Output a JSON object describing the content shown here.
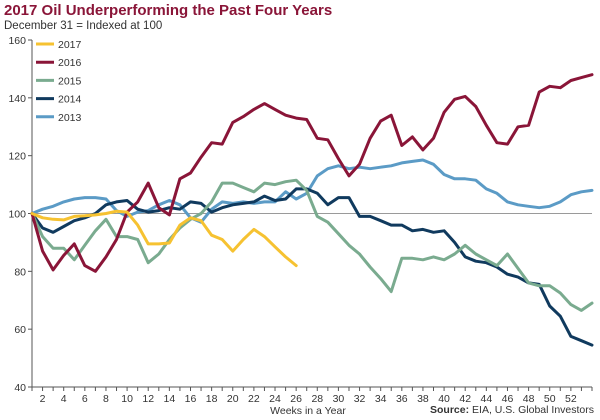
{
  "header": {
    "title": "2017 Oil Underperforming the Past Four Years",
    "subtitle": "December 31 = Indexed at 100"
  },
  "footer": {
    "source_label": "Source:",
    "source_text": "EIA, U.S. Global Investors"
  },
  "chart_data": {
    "type": "line",
    "title": "2017 Oil Underperforming the Past Four Years",
    "subtitle": "December 31 = Indexed at 100",
    "xlabel": "Weeks in a Year",
    "ylabel": "",
    "xlim": [
      1,
      54
    ],
    "ylim": [
      40,
      160
    ],
    "x_ticks": [
      2,
      4,
      6,
      8,
      10,
      12,
      14,
      16,
      18,
      20,
      22,
      24,
      26,
      28,
      30,
      32,
      34,
      36,
      38,
      40,
      42,
      44,
      46,
      48,
      50,
      52
    ],
    "y_ticks": [
      40,
      60,
      80,
      100,
      120,
      140,
      160
    ],
    "reference_line": 100,
    "grid": false,
    "legend_position": "top-left",
    "series": [
      {
        "name": "2017",
        "color": "#f6c231",
        "x": [
          1,
          2,
          3,
          4,
          5,
          6,
          7,
          8,
          9,
          10,
          11,
          12,
          13,
          14,
          15,
          16,
          17,
          18,
          19,
          20,
          21,
          22,
          23,
          24,
          25,
          26
        ],
        "values": [
          100,
          98.5,
          98,
          97.8,
          99,
          99.2,
          99.5,
          100,
          100.8,
          100.5,
          96,
          89.5,
          89.5,
          89.8,
          96,
          98.5,
          97.5,
          92.5,
          91,
          87,
          91,
          94.5,
          92,
          88.5,
          85,
          82
        ]
      },
      {
        "name": "2016",
        "color": "#8a1538",
        "x": [
          1,
          2,
          3,
          4,
          5,
          6,
          7,
          8,
          9,
          10,
          11,
          12,
          13,
          14,
          15,
          16,
          17,
          18,
          19,
          20,
          21,
          22,
          23,
          24,
          25,
          26,
          27,
          28,
          29,
          30,
          31,
          32,
          33,
          34,
          35,
          36,
          37,
          38,
          39,
          40,
          41,
          42,
          43,
          44,
          45,
          46,
          47,
          48,
          49,
          50,
          51,
          52,
          53,
          54
        ],
        "values": [
          100,
          87,
          80.5,
          85.5,
          89.5,
          82,
          80,
          85,
          91,
          100.5,
          104,
          110.5,
          102,
          99.5,
          112,
          114,
          119.5,
          124.5,
          124,
          131.5,
          133.5,
          136,
          138,
          136,
          134,
          133,
          132.5,
          126,
          125.5,
          119,
          113,
          117,
          126,
          132,
          134,
          123.5,
          126.5,
          122,
          126,
          135,
          139.5,
          140.5,
          137,
          130.5,
          124.5,
          124,
          130,
          130.5,
          142,
          144,
          143.5,
          146,
          147,
          148
        ]
      },
      {
        "name": "2015",
        "color": "#7aab8f",
        "x": [
          1,
          2,
          3,
          4,
          5,
          6,
          7,
          8,
          9,
          10,
          11,
          12,
          13,
          14,
          15,
          16,
          17,
          18,
          19,
          20,
          21,
          22,
          23,
          24,
          25,
          26,
          27,
          28,
          29,
          30,
          31,
          32,
          33,
          34,
          35,
          36,
          37,
          38,
          39,
          40,
          41,
          42,
          43,
          44,
          45,
          46,
          47,
          48,
          49,
          50,
          51,
          52,
          53,
          54
        ],
        "values": [
          100,
          92,
          88,
          88,
          84,
          89,
          94,
          98,
          92,
          92,
          91,
          83,
          86,
          91,
          95,
          98,
          100,
          104,
          110.5,
          110.5,
          109,
          107.5,
          110.5,
          110,
          111,
          111.5,
          108,
          99,
          97,
          93,
          89,
          86,
          81.5,
          77.5,
          73,
          84.5,
          84.5,
          84,
          85,
          84,
          86,
          89,
          86,
          84,
          82,
          86,
          81,
          76,
          75,
          75,
          72.5,
          68.5,
          66.5,
          69
        ]
      },
      {
        "name": "2014",
        "color": "#103a5e",
        "x": [
          1,
          2,
          3,
          4,
          5,
          6,
          7,
          8,
          9,
          10,
          11,
          12,
          13,
          14,
          15,
          16,
          17,
          18,
          19,
          20,
          21,
          22,
          23,
          24,
          25,
          26,
          27,
          28,
          29,
          30,
          31,
          32,
          33,
          34,
          35,
          36,
          37,
          38,
          39,
          40,
          41,
          42,
          43,
          44,
          45,
          46,
          47,
          48,
          49,
          50,
          51,
          52,
          53,
          54
        ],
        "values": [
          100,
          95,
          93.5,
          95.5,
          97.5,
          98.5,
          100,
          103,
          104,
          104.5,
          101.5,
          100.5,
          101,
          102,
          101.5,
          104,
          103.5,
          100.5,
          102,
          103,
          103.5,
          104,
          106,
          104.5,
          105,
          108.5,
          108.5,
          107,
          103,
          105.5,
          105.5,
          99,
          99,
          97.5,
          96,
          96,
          94,
          94.5,
          93.5,
          94,
          90,
          85,
          83.5,
          83,
          81.5,
          79,
          78,
          76,
          75.5,
          68,
          64.5,
          57.5,
          56,
          54.5
        ]
      },
      {
        "name": "2013",
        "color": "#5b9bc6",
        "x": [
          1,
          2,
          3,
          4,
          5,
          6,
          7,
          8,
          9,
          10,
          11,
          12,
          13,
          14,
          15,
          16,
          17,
          18,
          19,
          20,
          21,
          22,
          23,
          24,
          25,
          26,
          27,
          28,
          29,
          30,
          31,
          32,
          33,
          34,
          35,
          36,
          37,
          38,
          39,
          40,
          41,
          42,
          43,
          44,
          45,
          46,
          47,
          48,
          49,
          50,
          51,
          52,
          53,
          54
        ],
        "values": [
          100,
          101.5,
          102.5,
          104,
          105,
          105.5,
          105.5,
          105,
          101,
          99,
          100.5,
          101,
          103,
          104.5,
          103,
          98.5,
          97,
          101.5,
          104,
          103.5,
          104,
          103.5,
          104,
          104,
          107.5,
          105,
          107,
          113,
          115.5,
          116.5,
          115.5,
          116,
          115.5,
          116,
          116.5,
          117.5,
          118,
          118.5,
          117,
          113.5,
          112,
          112,
          111.5,
          108.5,
          107,
          104,
          103,
          102.5,
          102,
          102.5,
          104,
          106.5,
          107.5,
          108
        ]
      }
    ]
  }
}
